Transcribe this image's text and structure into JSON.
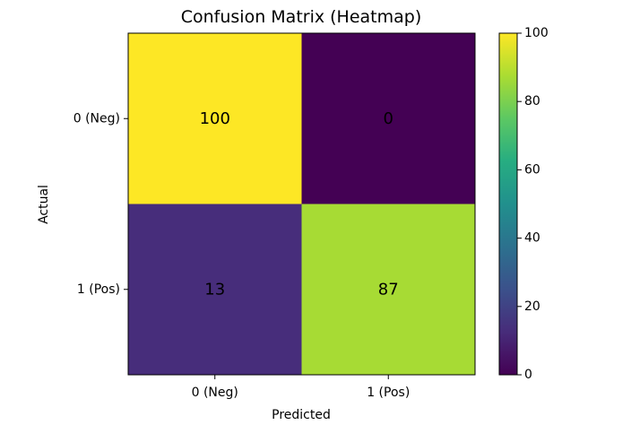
{
  "chart_data": {
    "type": "heatmap",
    "title": "Confusion Matrix (Heatmap)",
    "xlabel": "Predicted",
    "ylabel": "Actual",
    "x_categories": [
      "0 (Neg)",
      "1 (Pos)"
    ],
    "y_categories": [
      "0 (Neg)",
      "1 (Pos)"
    ],
    "values": [
      [
        100,
        0
      ],
      [
        13,
        87
      ]
    ],
    "colormap": "viridis",
    "colorbar": {
      "range": [
        0,
        100
      ],
      "ticks": [
        "0",
        "20",
        "40",
        "60",
        "80",
        "100"
      ]
    },
    "grid": false
  }
}
